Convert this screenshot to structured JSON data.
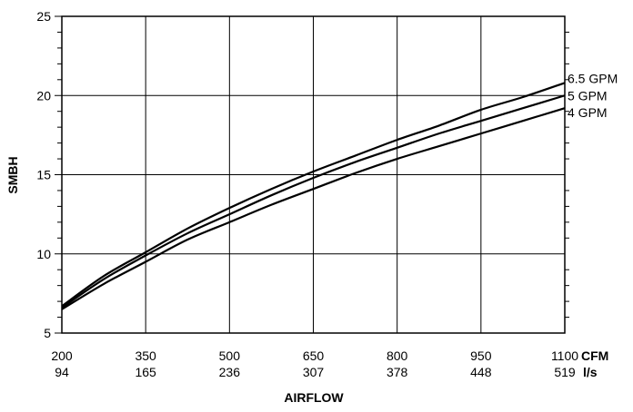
{
  "chart_data": {
    "type": "line",
    "title": "",
    "xlabel": "AIRFLOW",
    "ylabel": "SMBH",
    "x_unit_primary": "CFM",
    "x_unit_secondary": "l/s",
    "xlim": [
      200,
      1100
    ],
    "ylim": [
      5,
      25
    ],
    "x_ticks": [
      200,
      350,
      500,
      650,
      800,
      950,
      1100
    ],
    "x_ticks_secondary": [
      "94",
      "165",
      "236",
      "307",
      "378",
      "448",
      "519"
    ],
    "y_ticks": [
      5,
      10,
      15,
      20,
      25
    ],
    "y_minor_step": 1,
    "grid": true,
    "legend": "inline labels at right end of lines",
    "x": [
      200,
      275,
      350,
      425,
      500,
      575,
      650,
      725,
      800,
      875,
      950,
      1025,
      1100
    ],
    "series": [
      {
        "name": "6.5 GPM",
        "values": [
          6.7,
          8.6,
          10.1,
          11.6,
          12.9,
          14.1,
          15.2,
          16.2,
          17.2,
          18.1,
          19.1,
          19.9,
          20.8
        ]
      },
      {
        "name": "5 GPM",
        "values": [
          6.6,
          8.4,
          9.9,
          11.3,
          12.5,
          13.7,
          14.8,
          15.8,
          16.7,
          17.6,
          18.4,
          19.2,
          20.0
        ]
      },
      {
        "name": "4 GPM",
        "values": [
          6.5,
          8.1,
          9.5,
          10.9,
          12.0,
          13.1,
          14.1,
          15.1,
          16.0,
          16.8,
          17.6,
          18.4,
          19.2
        ]
      }
    ]
  }
}
